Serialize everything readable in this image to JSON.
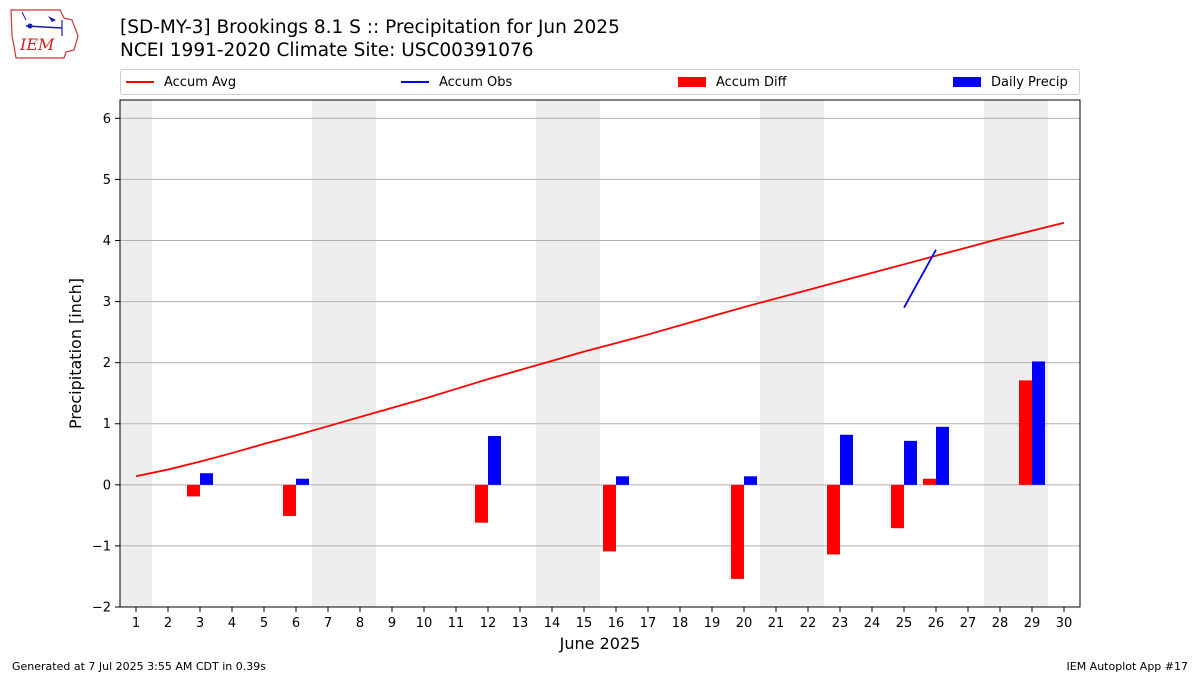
{
  "header": {
    "title_line1": "[SD-MY-3] Brookings 8.1 S :: Precipitation for Jun 2025",
    "title_line2": "NCEI 1991-2020 Climate Site: USC00391076",
    "logo_text": "IEM"
  },
  "footer": {
    "generated": "Generated at 7 Jul 2025 3:55 AM CDT in 0.39s",
    "app": "IEM Autoplot App #17"
  },
  "chart_data": {
    "type": "bar",
    "title": "[SD-MY-3] Brookings 8.1 S :: Precipitation for Jun 2025",
    "subtitle": "NCEI 1991-2020 Climate Site: USC00391076",
    "xlabel": "June 2025",
    "ylabel": "Precipitation [inch]",
    "xlim": [
      0.5,
      30.5
    ],
    "ylim": [
      -2.0,
      6.3
    ],
    "yticks": [
      6,
      5,
      4,
      3,
      2,
      1,
      0,
      -1,
      -2
    ],
    "ytick_labels": [
      "6",
      "5",
      "4",
      "3",
      "2",
      "1",
      "0",
      "−1",
      "−2"
    ],
    "days": [
      1,
      2,
      3,
      4,
      5,
      6,
      7,
      8,
      9,
      10,
      11,
      12,
      13,
      14,
      15,
      16,
      17,
      18,
      19,
      20,
      21,
      22,
      23,
      24,
      25,
      26,
      27,
      28,
      29,
      30
    ],
    "weekend_shading": [
      [
        0.5,
        1.5
      ],
      [
        6.5,
        8.5
      ],
      [
        13.5,
        15.5
      ],
      [
        20.5,
        22.5
      ],
      [
        27.5,
        29.5
      ]
    ],
    "grid": "horizontal",
    "legend_placement": "top",
    "series": [
      {
        "name": "Accum Avg",
        "kind": "line",
        "color": "#ff0000",
        "x": [
          1,
          2,
          3,
          4,
          5,
          6,
          7,
          8,
          9,
          10,
          11,
          12,
          13,
          14,
          15,
          16,
          17,
          18,
          19,
          20,
          21,
          22,
          23,
          24,
          25,
          26,
          27,
          28,
          29,
          30
        ],
        "values": [
          0.14,
          0.25,
          0.38,
          0.52,
          0.67,
          0.81,
          0.96,
          1.11,
          1.26,
          1.41,
          1.57,
          1.73,
          1.88,
          2.03,
          2.18,
          2.32,
          2.46,
          2.61,
          2.76,
          2.91,
          3.05,
          3.19,
          3.33,
          3.47,
          3.61,
          3.75,
          3.89,
          4.03,
          4.16,
          4.29
        ]
      },
      {
        "name": "Accum Obs",
        "kind": "line",
        "color": "#0000ff",
        "x": [
          25,
          26
        ],
        "values": [
          2.9,
          3.85
        ]
      },
      {
        "name": "Accum Diff",
        "kind": "bar",
        "color": "#ff0000",
        "x": [
          3,
          6,
          12,
          16,
          20,
          23,
          25,
          26,
          29
        ],
        "values": [
          -0.19,
          -0.51,
          -0.62,
          -1.09,
          -1.54,
          -1.14,
          -0.71,
          0.1,
          1.71
        ]
      },
      {
        "name": "Daily Precip",
        "kind": "bar",
        "color": "#0000ff",
        "x": [
          3,
          6,
          12,
          16,
          20,
          23,
          25,
          26,
          29
        ],
        "values": [
          0.19,
          0.1,
          0.8,
          0.14,
          0.14,
          0.82,
          0.72,
          0.95,
          2.02
        ]
      }
    ]
  }
}
